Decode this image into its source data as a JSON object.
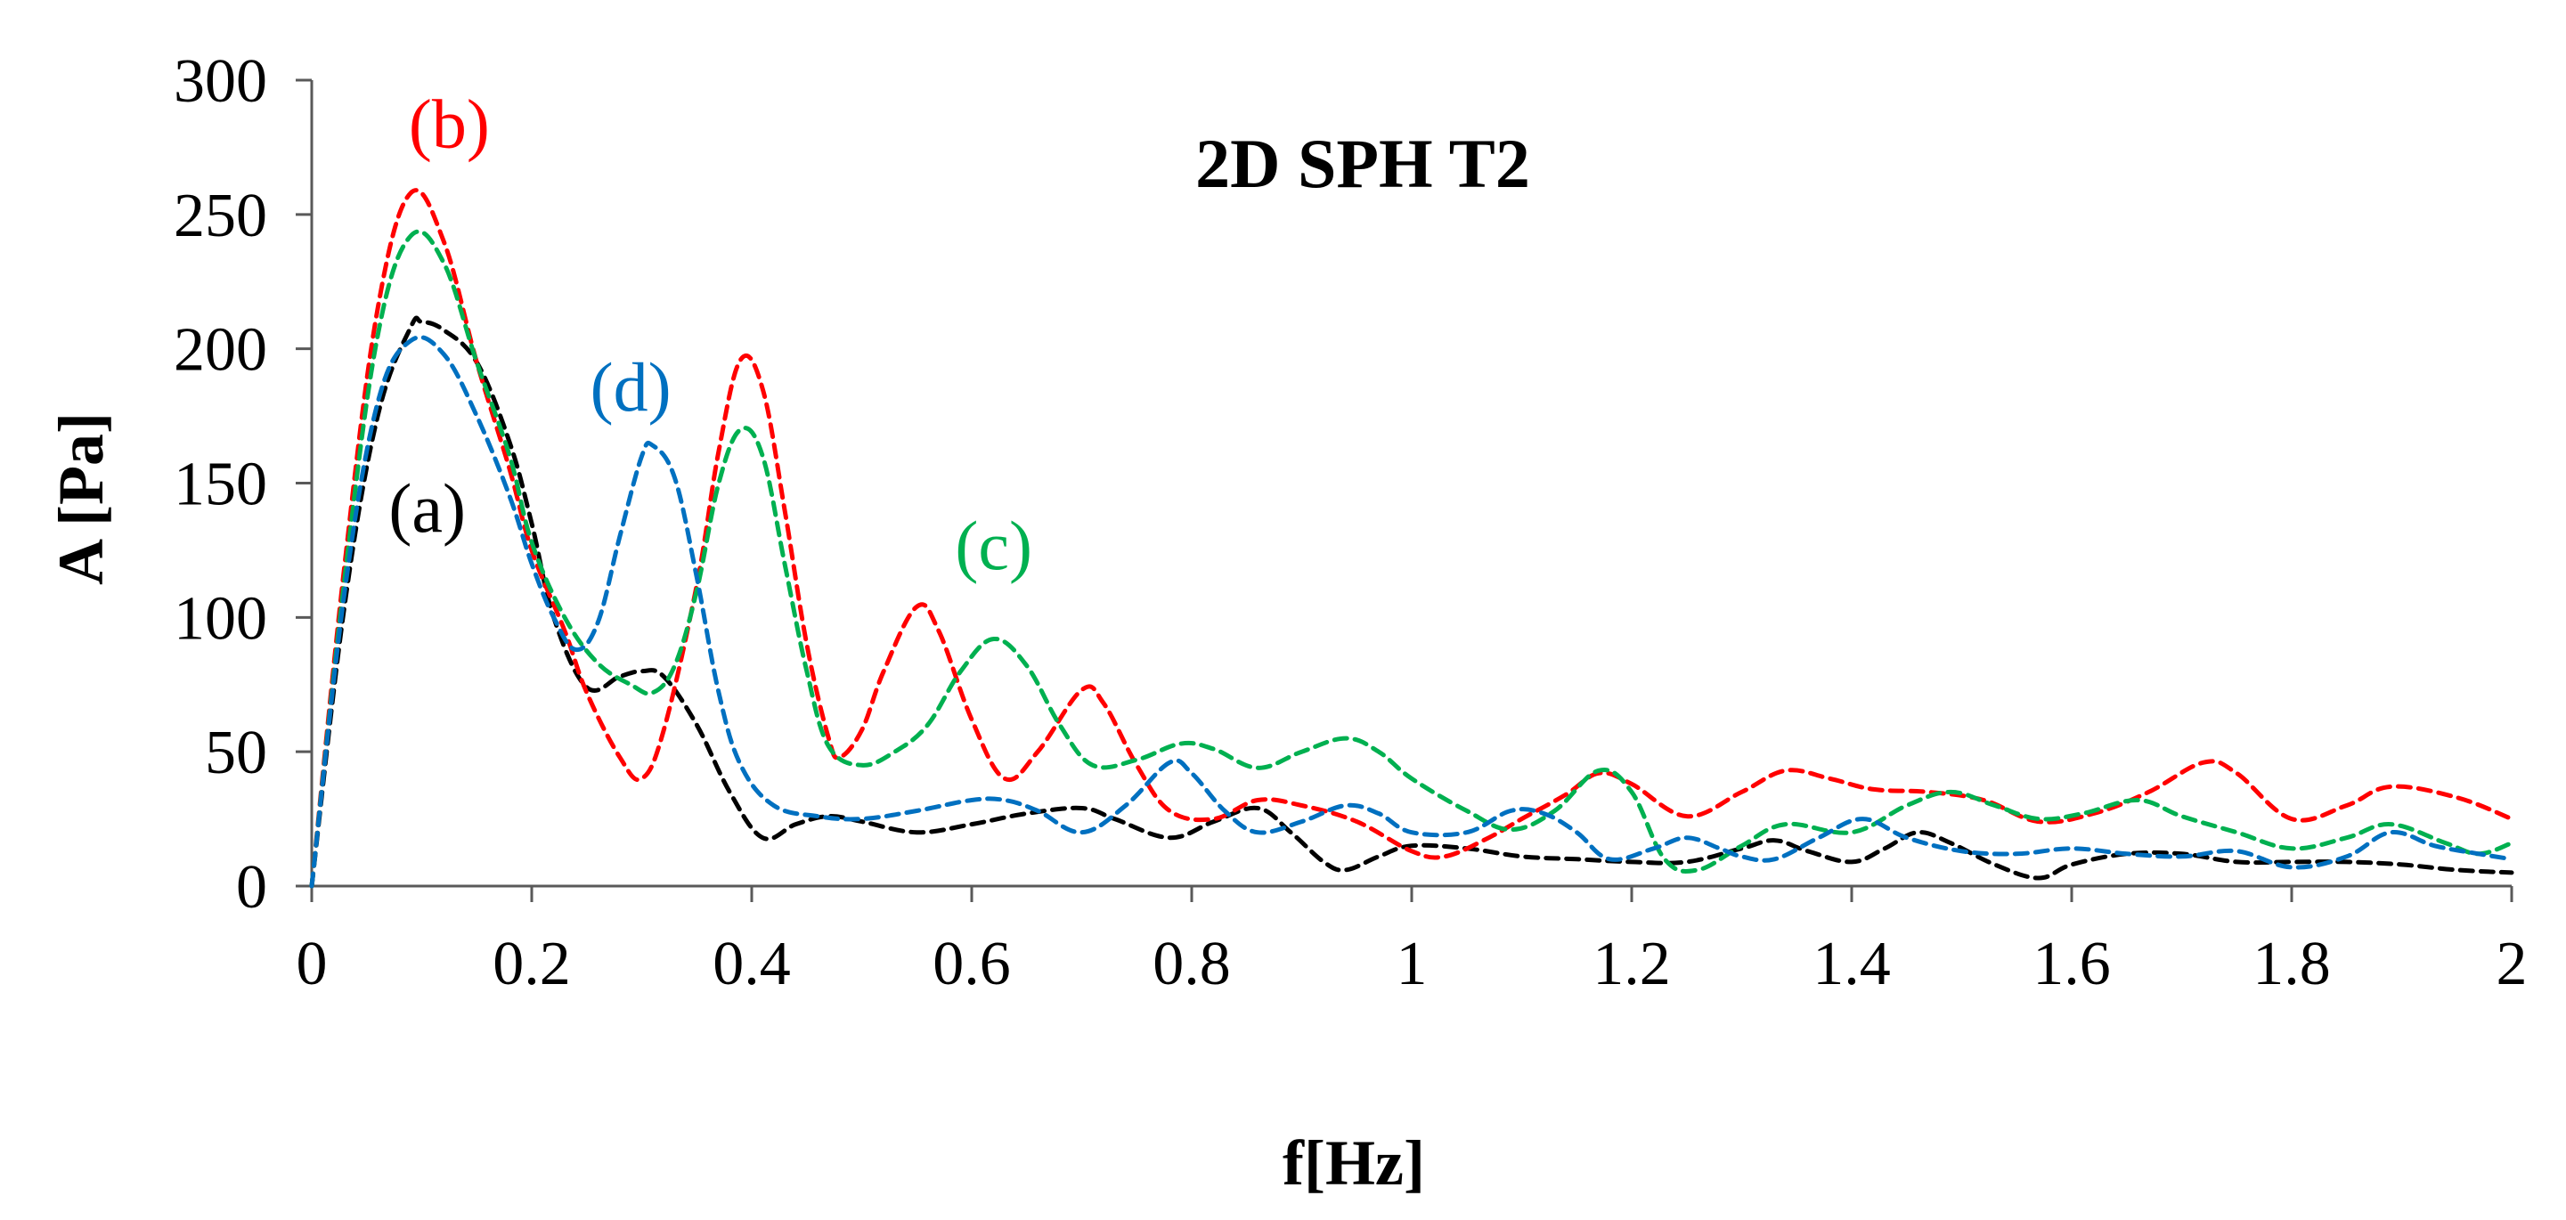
{
  "chart_data": {
    "type": "line",
    "title": "2D SPH T2",
    "xlabel": "f[Hz]",
    "ylabel": "A [Pa]",
    "xlim": [
      0,
      2
    ],
    "ylim": [
      0,
      300
    ],
    "xticks": [
      0,
      0.2,
      0.4,
      0.6,
      0.8,
      1,
      1.2,
      1.4,
      1.6,
      1.8,
      2
    ],
    "xtick_labels": [
      "0",
      "0.2",
      "0.4",
      "0.6",
      "0.8",
      "1",
      "1.2",
      "1.4",
      "1.6",
      "1.8",
      "2"
    ],
    "yticks": [
      0,
      50,
      100,
      150,
      200,
      250,
      300
    ],
    "ytick_labels": [
      "0",
      "50",
      "100",
      "150",
      "200",
      "250",
      "300"
    ],
    "grid": false,
    "line_style": "dashed",
    "series": [
      {
        "name": "(a)",
        "color": "#000000",
        "points": [
          [
            0,
            0
          ],
          [
            0.03,
            105
          ],
          [
            0.06,
            175
          ],
          [
            0.09,
            208
          ],
          [
            0.1,
            210
          ],
          [
            0.12,
            207
          ],
          [
            0.15,
            195
          ],
          [
            0.18,
            165
          ],
          [
            0.2,
            135
          ],
          [
            0.22,
            100
          ],
          [
            0.25,
            74
          ],
          [
            0.28,
            78
          ],
          [
            0.3,
            80
          ],
          [
            0.32,
            78
          ],
          [
            0.35,
            60
          ],
          [
            0.38,
            35
          ],
          [
            0.41,
            18
          ],
          [
            0.44,
            23
          ],
          [
            0.47,
            26
          ],
          [
            0.5,
            24
          ],
          [
            0.55,
            20
          ],
          [
            0.6,
            23
          ],
          [
            0.65,
            27
          ],
          [
            0.7,
            29
          ],
          [
            0.73,
            25
          ],
          [
            0.78,
            18
          ],
          [
            0.82,
            24
          ],
          [
            0.86,
            29
          ],
          [
            0.89,
            20
          ],
          [
            0.92,
            9
          ],
          [
            0.94,
            6
          ],
          [
            0.97,
            11
          ],
          [
            1.0,
            15
          ],
          [
            1.05,
            14
          ],
          [
            1.1,
            11
          ],
          [
            1.15,
            10
          ],
          [
            1.2,
            9
          ],
          [
            1.25,
            9
          ],
          [
            1.3,
            14
          ],
          [
            1.33,
            17
          ],
          [
            1.36,
            13
          ],
          [
            1.4,
            9
          ],
          [
            1.43,
            14
          ],
          [
            1.46,
            20
          ],
          [
            1.49,
            16
          ],
          [
            1.53,
            8
          ],
          [
            1.57,
            3
          ],
          [
            1.6,
            8
          ],
          [
            1.65,
            12
          ],
          [
            1.7,
            12
          ],
          [
            1.75,
            9
          ],
          [
            1.8,
            9
          ],
          [
            1.85,
            9
          ],
          [
            1.9,
            8
          ],
          [
            1.95,
            6
          ],
          [
            2.0,
            5
          ]
        ]
      },
      {
        "name": "(b)",
        "color": "#ff0000",
        "points": [
          [
            0,
            0
          ],
          [
            0.03,
            120
          ],
          [
            0.06,
            215
          ],
          [
            0.09,
            258
          ],
          [
            0.12,
            240
          ],
          [
            0.15,
            195
          ],
          [
            0.18,
            155
          ],
          [
            0.2,
            125
          ],
          [
            0.23,
            95
          ],
          [
            0.25,
            72
          ],
          [
            0.28,
            48
          ],
          [
            0.3,
            40
          ],
          [
            0.32,
            58
          ],
          [
            0.35,
            112
          ],
          [
            0.37,
            162
          ],
          [
            0.39,
            196
          ],
          [
            0.41,
            185
          ],
          [
            0.43,
            140
          ],
          [
            0.45,
            90
          ],
          [
            0.47,
            55
          ],
          [
            0.48,
            48
          ],
          [
            0.5,
            58
          ],
          [
            0.52,
            80
          ],
          [
            0.55,
            104
          ],
          [
            0.57,
            95
          ],
          [
            0.6,
            62
          ],
          [
            0.63,
            40
          ],
          [
            0.66,
            50
          ],
          [
            0.7,
            73
          ],
          [
            0.72,
            68
          ],
          [
            0.75,
            45
          ],
          [
            0.78,
            28
          ],
          [
            0.82,
            25
          ],
          [
            0.86,
            32
          ],
          [
            0.9,
            30
          ],
          [
            0.95,
            24
          ],
          [
            1.0,
            13
          ],
          [
            1.03,
            11
          ],
          [
            1.07,
            18
          ],
          [
            1.1,
            25
          ],
          [
            1.14,
            34
          ],
          [
            1.17,
            42
          ],
          [
            1.2,
            38
          ],
          [
            1.25,
            26
          ],
          [
            1.3,
            35
          ],
          [
            1.34,
            43
          ],
          [
            1.38,
            40
          ],
          [
            1.42,
            36
          ],
          [
            1.47,
            35
          ],
          [
            1.52,
            32
          ],
          [
            1.57,
            24
          ],
          [
            1.62,
            27
          ],
          [
            1.67,
            35
          ],
          [
            1.72,
            46
          ],
          [
            1.75,
            42
          ],
          [
            1.8,
            25
          ],
          [
            1.85,
            30
          ],
          [
            1.89,
            37
          ],
          [
            1.95,
            33
          ],
          [
            2.0,
            25
          ]
        ]
      },
      {
        "name": "(c)",
        "color": "#00b050",
        "points": [
          [
            0,
            0
          ],
          [
            0.03,
            115
          ],
          [
            0.06,
            205
          ],
          [
            0.09,
            242
          ],
          [
            0.12,
            232
          ],
          [
            0.15,
            195
          ],
          [
            0.18,
            160
          ],
          [
            0.2,
            128
          ],
          [
            0.23,
            100
          ],
          [
            0.26,
            83
          ],
          [
            0.29,
            75
          ],
          [
            0.31,
            72
          ],
          [
            0.33,
            82
          ],
          [
            0.35,
            110
          ],
          [
            0.37,
            150
          ],
          [
            0.39,
            170
          ],
          [
            0.41,
            160
          ],
          [
            0.43,
            120
          ],
          [
            0.45,
            80
          ],
          [
            0.47,
            52
          ],
          [
            0.5,
            45
          ],
          [
            0.53,
            50
          ],
          [
            0.56,
            60
          ],
          [
            0.59,
            80
          ],
          [
            0.62,
            92
          ],
          [
            0.65,
            82
          ],
          [
            0.68,
            60
          ],
          [
            0.71,
            45
          ],
          [
            0.75,
            47
          ],
          [
            0.79,
            53
          ],
          [
            0.82,
            51
          ],
          [
            0.86,
            44
          ],
          [
            0.9,
            50
          ],
          [
            0.94,
            55
          ],
          [
            0.97,
            50
          ],
          [
            1.0,
            40
          ],
          [
            1.05,
            28
          ],
          [
            1.09,
            21
          ],
          [
            1.13,
            28
          ],
          [
            1.17,
            43
          ],
          [
            1.2,
            35
          ],
          [
            1.23,
            10
          ],
          [
            1.26,
            6
          ],
          [
            1.3,
            15
          ],
          [
            1.34,
            23
          ],
          [
            1.4,
            20
          ],
          [
            1.45,
            30
          ],
          [
            1.49,
            35
          ],
          [
            1.53,
            30
          ],
          [
            1.57,
            25
          ],
          [
            1.61,
            27
          ],
          [
            1.66,
            32
          ],
          [
            1.7,
            26
          ],
          [
            1.75,
            20
          ],
          [
            1.8,
            14
          ],
          [
            1.85,
            18
          ],
          [
            1.89,
            23
          ],
          [
            1.94,
            16
          ],
          [
            1.97,
            12
          ],
          [
            2.0,
            16
          ]
        ]
      },
      {
        "name": "(d)",
        "color": "#0070c0",
        "points": [
          [
            0,
            0
          ],
          [
            0.03,
            110
          ],
          [
            0.06,
            180
          ],
          [
            0.09,
            203
          ],
          [
            0.12,
            198
          ],
          [
            0.15,
            175
          ],
          [
            0.18,
            145
          ],
          [
            0.2,
            120
          ],
          [
            0.22,
            100
          ],
          [
            0.24,
            88
          ],
          [
            0.26,
            98
          ],
          [
            0.28,
            130
          ],
          [
            0.3,
            160
          ],
          [
            0.31,
            164
          ],
          [
            0.33,
            152
          ],
          [
            0.35,
            115
          ],
          [
            0.37,
            72
          ],
          [
            0.39,
            45
          ],
          [
            0.42,
            30
          ],
          [
            0.46,
            26
          ],
          [
            0.5,
            25
          ],
          [
            0.55,
            28
          ],
          [
            0.6,
            32
          ],
          [
            0.63,
            32
          ],
          [
            0.66,
            28
          ],
          [
            0.7,
            20
          ],
          [
            0.74,
            30
          ],
          [
            0.78,
            46
          ],
          [
            0.8,
            42
          ],
          [
            0.83,
            28
          ],
          [
            0.86,
            20
          ],
          [
            0.9,
            24
          ],
          [
            0.94,
            30
          ],
          [
            0.97,
            27
          ],
          [
            1.0,
            20
          ],
          [
            1.05,
            20
          ],
          [
            1.09,
            28
          ],
          [
            1.12,
            27
          ],
          [
            1.15,
            20
          ],
          [
            1.18,
            10
          ],
          [
            1.22,
            14
          ],
          [
            1.25,
            18
          ],
          [
            1.28,
            14
          ],
          [
            1.3,
            11
          ],
          [
            1.33,
            10
          ],
          [
            1.37,
            18
          ],
          [
            1.41,
            25
          ],
          [
            1.45,
            18
          ],
          [
            1.5,
            13
          ],
          [
            1.55,
            12
          ],
          [
            1.6,
            14
          ],
          [
            1.65,
            12
          ],
          [
            1.7,
            11
          ],
          [
            1.75,
            13
          ],
          [
            1.8,
            7
          ],
          [
            1.85,
            11
          ],
          [
            1.89,
            20
          ],
          [
            1.93,
            15
          ],
          [
            1.97,
            12
          ],
          [
            2.0,
            10
          ]
        ]
      }
    ],
    "annotations": [
      {
        "text": "(a)",
        "series": "(a)",
        "x": 0.105,
        "y": 132
      },
      {
        "text": "(b)",
        "series": "(b)",
        "x": 0.125,
        "y": 275
      },
      {
        "text": "(c)",
        "series": "(c)",
        "x": 0.62,
        "y": 118
      },
      {
        "text": "(d)",
        "series": "(d)",
        "x": 0.29,
        "y": 177
      }
    ]
  }
}
